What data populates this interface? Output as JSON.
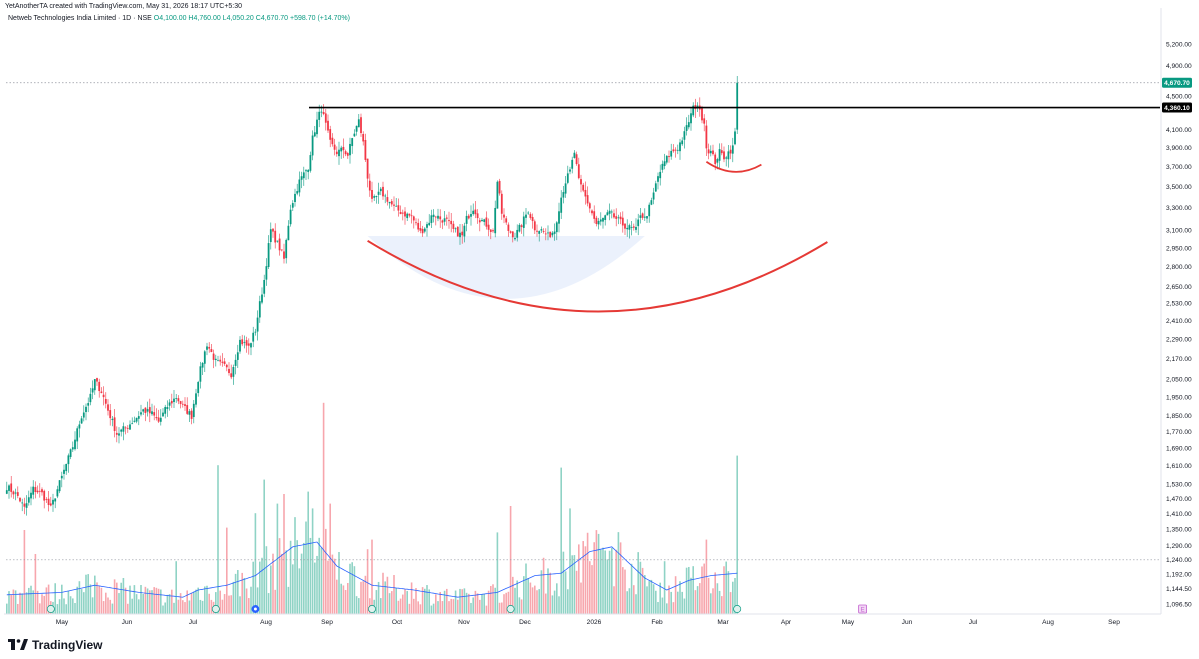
{
  "header": {
    "author_line": "YetAnotherTA created with TradingView.com, May 31, 2026 18:17 UTC+5:30",
    "symbol_line": "Netweb Technologies India Limited · 1D · NSE",
    "ohlc_line": "O4,100.00  H4,760.00  L4,050.20  C4,670.70  +598.70 (+14.70%)"
  },
  "footer": {
    "brand": "TradingView"
  },
  "colors": {
    "up": "#089981",
    "down": "#f23645",
    "vol_up": "#8fd3c5",
    "vol_down": "#f7a6ad",
    "ma": "#2962ff",
    "resistance": "#000000",
    "cup_curve": "#e53935",
    "cup_fill": "#e8eefc",
    "last_price_badge": "#089981",
    "level_badge": "#000000"
  },
  "chart_data": {
    "type": "candlestick",
    "x_axis": {
      "labels": [
        "May",
        "Jun",
        "Jul",
        "Aug",
        "Sep",
        "Oct",
        "Nov",
        "Dec",
        "2026",
        "Feb",
        "Mar",
        "Apr",
        "May",
        "Jun",
        "Jul",
        "Aug",
        "Sep"
      ]
    },
    "y_axis": {
      "scale": "log",
      "range": [
        1066.5,
        5750
      ],
      "tick_labels": [
        "5,200.00",
        "4,900.00",
        "4,500.00",
        "4,100.00",
        "3,900.00",
        "3,700.00",
        "3,500.00",
        "3,300.00",
        "3,100.00",
        "2,950.00",
        "2,800.00",
        "2,650.00",
        "2,530.00",
        "2,410.00",
        "2,290.00",
        "2,170.00",
        "2,050.00",
        "1,950.00",
        "1,850.00",
        "1,770.00",
        "1,690.00",
        "1,610.00",
        "1,530.00",
        "1,470.00",
        "1,410.00",
        "1,350.00",
        "1,290.00",
        "1,240.00",
        "1,192.00",
        "1,144.50",
        "1,096.50"
      ],
      "tick_values": [
        5200,
        4900,
        4500,
        4100,
        3900,
        3700,
        3500,
        3300,
        3100,
        2950,
        2800,
        2650,
        2530,
        2410,
        2290,
        2170,
        2050,
        1950,
        1850,
        1770,
        1690,
        1610,
        1530,
        1470,
        1410,
        1350,
        1290,
        1240,
        1192,
        1144.5,
        1096.5
      ]
    },
    "last_price": {
      "value": 4670.7,
      "label": "4,670.70"
    },
    "resistance": {
      "value": 4360.1,
      "label": "4,360.10"
    },
    "close_path": [
      [
        0,
        1520
      ],
      [
        5,
        1480
      ],
      [
        8,
        1430
      ],
      [
        12,
        1510
      ],
      [
        16,
        1490
      ],
      [
        20,
        1430
      ],
      [
        25,
        1560
      ],
      [
        30,
        1700
      ],
      [
        34,
        1850
      ],
      [
        38,
        1950
      ],
      [
        40,
        2040
      ],
      [
        43,
        1980
      ],
      [
        46,
        1880
      ],
      [
        50,
        1760
      ],
      [
        54,
        1790
      ],
      [
        58,
        1830
      ],
      [
        62,
        1880
      ],
      [
        66,
        1860
      ],
      [
        69,
        1820
      ],
      [
        73,
        1900
      ],
      [
        77,
        1950
      ],
      [
        80,
        1900
      ],
      [
        84,
        1850
      ],
      [
        87,
        2050
      ],
      [
        91,
        2260
      ],
      [
        95,
        2150
      ],
      [
        99,
        2120
      ],
      [
        102,
        2080
      ],
      [
        106,
        2280
      ],
      [
        110,
        2240
      ],
      [
        113,
        2350
      ],
      [
        117,
        2700
      ],
      [
        120,
        3100
      ],
      [
        124,
        2950
      ],
      [
        126,
        2860
      ],
      [
        129,
        3300
      ],
      [
        133,
        3550
      ],
      [
        137,
        3700
      ],
      [
        139,
        4000
      ],
      [
        141,
        4200
      ],
      [
        143,
        4350
      ],
      [
        145,
        4150
      ],
      [
        147,
        3950
      ],
      [
        150,
        3850
      ],
      [
        153,
        3880
      ],
      [
        155,
        3820
      ],
      [
        157,
        4000
      ],
      [
        160,
        4200
      ],
      [
        162,
        3950
      ],
      [
        164,
        3600
      ],
      [
        166,
        3350
      ],
      [
        170,
        3450
      ],
      [
        173,
        3380
      ],
      [
        176,
        3300
      ],
      [
        180,
        3250
      ],
      [
        184,
        3220
      ],
      [
        188,
        3080
      ],
      [
        191,
        3150
      ],
      [
        194,
        3250
      ],
      [
        197,
        3200
      ],
      [
        200,
        3180
      ],
      [
        203,
        3100
      ],
      [
        207,
        3050
      ],
      [
        209,
        3200
      ],
      [
        212,
        3300
      ],
      [
        215,
        3200
      ],
      [
        218,
        3150
      ],
      [
        221,
        3080
      ],
      [
        223,
        3550
      ],
      [
        225,
        3250
      ],
      [
        228,
        3100
      ],
      [
        231,
        3050
      ],
      [
        234,
        3150
      ],
      [
        237,
        3280
      ],
      [
        240,
        3120
      ],
      [
        243,
        3100
      ],
      [
        246,
        3050
      ],
      [
        249,
        3100
      ],
      [
        252,
        3400
      ],
      [
        254,
        3550
      ],
      [
        256,
        3650
      ],
      [
        258,
        3850
      ],
      [
        260,
        3550
      ],
      [
        262,
        3450
      ],
      [
        265,
        3300
      ],
      [
        268,
        3150
      ],
      [
        271,
        3200
      ],
      [
        274,
        3250
      ],
      [
        277,
        3200
      ],
      [
        280,
        3150
      ],
      [
        283,
        3120
      ],
      [
        286,
        3100
      ],
      [
        288,
        3250
      ],
      [
        290,
        3200
      ],
      [
        293,
        3350
      ],
      [
        296,
        3600
      ],
      [
        299,
        3750
      ],
      [
        302,
        3850
      ],
      [
        305,
        3900
      ],
      [
        308,
        4050
      ],
      [
        310,
        4200
      ],
      [
        312,
        4350
      ],
      [
        314,
        4400
      ],
      [
        315,
        4300
      ],
      [
        317,
        4200
      ],
      [
        318,
        3900
      ],
      [
        320,
        3850
      ],
      [
        322,
        3750
      ],
      [
        324,
        3850
      ],
      [
        326,
        3800
      ],
      [
        328,
        3850
      ],
      [
        330,
        3900
      ],
      [
        331,
        4072
      ],
      [
        332,
        4670.7
      ]
    ],
    "ma_path": [
      [
        0,
        0.8
      ],
      [
        25,
        0.9
      ],
      [
        40,
        1.2
      ],
      [
        60,
        0.9
      ],
      [
        80,
        0.7
      ],
      [
        87,
        1.0
      ],
      [
        100,
        1.2
      ],
      [
        113,
        1.6
      ],
      [
        130,
        2.8
      ],
      [
        141,
        3.0
      ],
      [
        150,
        2.0
      ],
      [
        166,
        1.2
      ],
      [
        185,
        1.0
      ],
      [
        205,
        0.7
      ],
      [
        223,
        0.9
      ],
      [
        240,
        1.6
      ],
      [
        252,
        1.7
      ],
      [
        265,
        2.6
      ],
      [
        275,
        2.8
      ],
      [
        290,
        1.5
      ],
      [
        300,
        1.0
      ],
      [
        310,
        1.4
      ],
      [
        320,
        1.6
      ],
      [
        332,
        1.7
      ]
    ],
    "volume_spikes": [
      [
        8,
        3.5
      ],
      [
        13,
        2.5
      ],
      [
        40,
        1.6
      ],
      [
        77,
        2.2
      ],
      [
        96,
        6.2
      ],
      [
        100,
        3.6
      ],
      [
        113,
        4.2
      ],
      [
        117,
        5.6
      ],
      [
        123,
        4.6
      ],
      [
        126,
        5.0
      ],
      [
        137,
        5.1
      ],
      [
        139,
        4.4
      ],
      [
        144,
        8.8
      ],
      [
        147,
        4.6
      ],
      [
        164,
        2.7
      ],
      [
        166,
        3.1
      ],
      [
        223,
        3.4
      ],
      [
        229,
        4.5
      ],
      [
        252,
        6.1
      ],
      [
        256,
        4.4
      ],
      [
        260,
        2.9
      ],
      [
        265,
        2.2
      ],
      [
        299,
        2.2
      ],
      [
        318,
        3.1
      ],
      [
        331,
        1.5
      ],
      [
        332,
        6.6
      ]
    ],
    "earnings_markers": [
      20,
      95,
      113,
      166,
      229,
      332,
      389
    ]
  }
}
